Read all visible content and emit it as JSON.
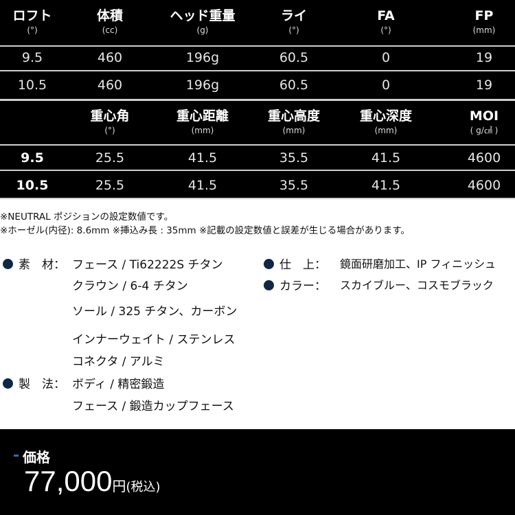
{
  "table1": {
    "headers": [
      {
        "label": "ロフト",
        "unit": "(°)"
      },
      {
        "label": "体積",
        "unit": "(cc)"
      },
      {
        "label": "ヘッド重量",
        "unit": "(g)"
      },
      {
        "label": "ライ",
        "unit": "(°)"
      },
      {
        "label": "FA",
        "unit": "(°)"
      },
      {
        "label": "FP",
        "unit": "(mm)"
      }
    ],
    "rows": [
      [
        "9.5",
        "460",
        "196g",
        "60.5",
        "0",
        "19"
      ],
      [
        "10.5",
        "460",
        "196g",
        "60.5",
        "0",
        "19"
      ]
    ]
  },
  "table2": {
    "headers": [
      {
        "label": "",
        "unit": ""
      },
      {
        "label": "重心角",
        "unit": "(°)"
      },
      {
        "label": "重心距離",
        "unit": "(mm)"
      },
      {
        "label": "重心高度",
        "unit": "(mm)"
      },
      {
        "label": "重心深度",
        "unit": "(mm)"
      },
      {
        "label": "MOI",
        "unit": "( g/㎠ )"
      }
    ],
    "rows": [
      [
        "9.5",
        "25.5",
        "41.5",
        "35.5",
        "41.5",
        "4600"
      ],
      [
        "10.5",
        "25.5",
        "41.5",
        "35.5",
        "41.5",
        "4600"
      ]
    ]
  },
  "notes": [
    "※NEUTRAL ポジションの設定数値です。",
    "※ホーゼル(内径): 8.6mm  ※挿込み長 : 35mm  ※記載の設定数値と誤差が生じる場合があります。"
  ],
  "specs": {
    "material_label": "素　材：",
    "material": [
      "フェース / Ti62222S チタン",
      "クラウン / 6-4 チタン",
      "ソール / 325 チタン、カーボン",
      "インナーウェイト / ステンレス",
      "コネクタ / アルミ"
    ],
    "method_label": "製　法：",
    "method": [
      "ボディ / 精密鍛造",
      "フェース / 鍛造カップフェース"
    ],
    "finish_label": "仕　上：",
    "finish": "鏡面研磨加工、IP フィニッシュ",
    "color_label": "カラー：",
    "color": "スカイブルー、コスモブラック"
  },
  "price": {
    "label": "価格",
    "amount": "77,000",
    "yen": "円",
    "tax": "(税込)"
  },
  "colors": {
    "bullet": "#0f2744",
    "accent": "#2f6db3"
  }
}
